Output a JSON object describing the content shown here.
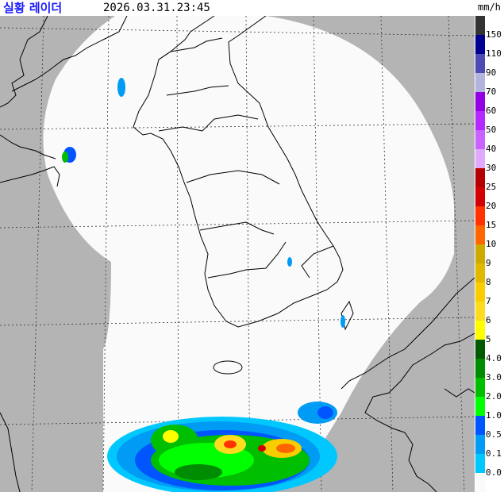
{
  "header": {
    "title": "실황 레이더",
    "timestamp": "2026.03.31.23:45",
    "unit": "mm/h"
  },
  "map": {
    "background_color": "#b4b4b4",
    "coverage_color": "#fafafa",
    "grid": true
  },
  "legend": {
    "colors": [
      "#333333",
      "#000090",
      "#4c4cb4",
      "#b3b4de",
      "#9300e4",
      "#b329ff",
      "#c963ff",
      "#e0a9ff",
      "#b40000",
      "#d20000",
      "#ff3200",
      "#ff6600",
      "#ccaa00",
      "#e0b900",
      "#f9cd00",
      "#ffdc1f",
      "#ffff00",
      "#005a00",
      "#008c00",
      "#00be00",
      "#00ff00",
      "#0055ff",
      "#009bf5",
      "#00c8ff",
      "#fafafa"
    ],
    "labels": [
      "150",
      "110",
      "90",
      "70",
      "60",
      "50",
      "40",
      "30",
      "25",
      "20",
      "15",
      "10",
      "9",
      "8",
      "7",
      "6",
      "5",
      "4.0",
      "3.0",
      "2.0",
      "1.0",
      "0.5",
      "0.1",
      "0.0"
    ]
  }
}
